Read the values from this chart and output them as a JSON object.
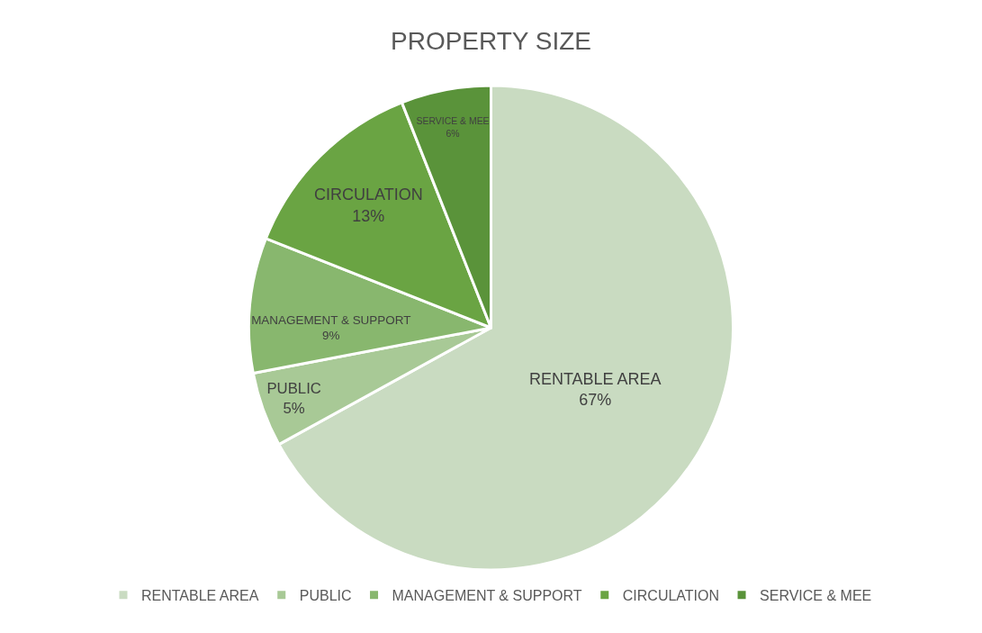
{
  "chart_data": {
    "type": "pie",
    "title": "PROPERTY SIZE",
    "categories": [
      "RENTABLE AREA",
      "PUBLIC",
      "MANAGEMENT & SUPPORT",
      "CIRCULATION",
      "SERVICE & MEE"
    ],
    "values": [
      67,
      5,
      9,
      13,
      6
    ],
    "value_labels": [
      "67%",
      "5%",
      "9%",
      "13%",
      "6%"
    ],
    "colors": [
      "#c9dbc1",
      "#a8c996",
      "#88b76e",
      "#6aa443",
      "#5a933a"
    ],
    "legend": "bottom"
  }
}
